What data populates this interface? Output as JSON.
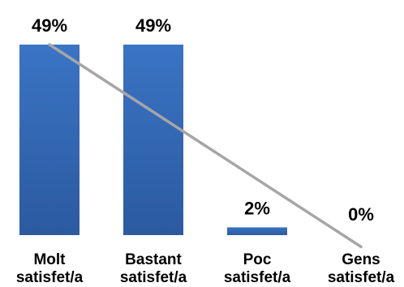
{
  "chart_data": {
    "type": "bar",
    "categories": [
      [
        "Molt",
        "satisfet/a"
      ],
      [
        "Bastant",
        "satisfet/a"
      ],
      [
        "Poc",
        "satisfet/a"
      ],
      [
        "Gens",
        "satisfet/a"
      ]
    ],
    "values": [
      49,
      49,
      2,
      0
    ],
    "value_labels": [
      "49%",
      "49%",
      "2%",
      "0%"
    ],
    "ylim": [
      0,
      55
    ],
    "grid": false,
    "legend": "none",
    "bar_color": "#3a74c4",
    "bar_color_dark": "#2b5aa0",
    "trend_line": {
      "type": "linear",
      "color": "#a6a6a6",
      "start_value": 49,
      "end_value": -3
    }
  }
}
